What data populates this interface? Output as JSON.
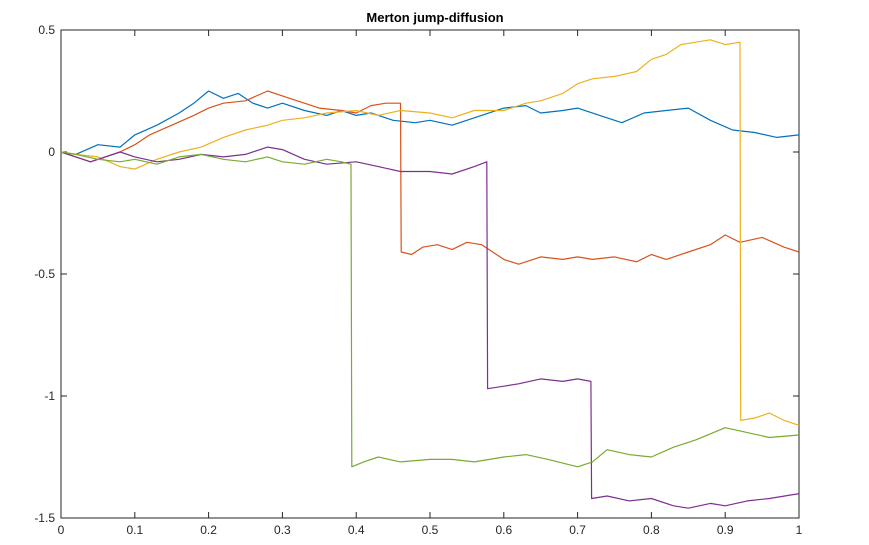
{
  "chart_data": {
    "type": "line",
    "title": "Merton jump-diffusion",
    "xlabel": "",
    "ylabel": "",
    "xlim": [
      0,
      1
    ],
    "ylim": [
      -1.5,
      0.5
    ],
    "xticks": [
      0,
      0.1,
      0.2,
      0.3,
      0.4,
      0.5,
      0.6,
      0.7,
      0.8,
      0.9,
      1
    ],
    "xtick_labels": [
      "0",
      "0.1",
      "0.2",
      "0.3",
      "0.4",
      "0.5",
      "0.6",
      "0.7",
      "0.8",
      "0.9",
      "1"
    ],
    "yticks": [
      -1.5,
      -1,
      -0.5,
      0,
      0.5
    ],
    "ytick_labels": [
      "-1.5",
      "-1",
      "-0.5",
      "0",
      "0.5"
    ],
    "grid": false,
    "legend": "none",
    "series": [
      {
        "color": "#0072BD",
        "x": [
          0,
          0.02,
          0.05,
          0.08,
          0.1,
          0.13,
          0.16,
          0.18,
          0.2,
          0.22,
          0.24,
          0.26,
          0.28,
          0.3,
          0.33,
          0.36,
          0.38,
          0.4,
          0.42,
          0.45,
          0.48,
          0.5,
          0.53,
          0.56,
          0.6,
          0.63,
          0.65,
          0.68,
          0.7,
          0.73,
          0.76,
          0.79,
          0.82,
          0.85,
          0.88,
          0.91,
          0.94,
          0.97,
          1
        ],
        "y": [
          0,
          -0.01,
          0.03,
          0.02,
          0.07,
          0.11,
          0.16,
          0.2,
          0.25,
          0.22,
          0.24,
          0.2,
          0.18,
          0.2,
          0.17,
          0.15,
          0.17,
          0.15,
          0.16,
          0.13,
          0.12,
          0.13,
          0.11,
          0.14,
          0.18,
          0.19,
          0.16,
          0.17,
          0.18,
          0.15,
          0.12,
          0.16,
          0.17,
          0.18,
          0.13,
          0.09,
          0.08,
          0.06,
          0.07
        ]
      },
      {
        "color": "#D95319",
        "x": [
          0,
          0.02,
          0.04,
          0.06,
          0.08,
          0.1,
          0.12,
          0.15,
          0.18,
          0.2,
          0.22,
          0.25,
          0.28,
          0.3,
          0.32,
          0.35,
          0.38,
          0.4,
          0.42,
          0.44,
          0.46,
          0.461,
          0.475,
          0.49,
          0.51,
          0.53,
          0.55,
          0.57,
          0.6,
          0.62,
          0.65,
          0.68,
          0.7,
          0.72,
          0.75,
          0.78,
          0.8,
          0.82,
          0.85,
          0.88,
          0.9,
          0.92,
          0.95,
          0.98,
          1
        ],
        "y": [
          0,
          -0.02,
          -0.04,
          -0.02,
          0,
          0.03,
          0.07,
          0.11,
          0.15,
          0.18,
          0.2,
          0.21,
          0.25,
          0.23,
          0.21,
          0.18,
          0.17,
          0.16,
          0.19,
          0.2,
          0.2,
          -0.41,
          -0.42,
          -0.39,
          -0.38,
          -0.4,
          -0.37,
          -0.38,
          -0.44,
          -0.46,
          -0.43,
          -0.44,
          -0.43,
          -0.44,
          -0.43,
          -0.45,
          -0.42,
          -0.44,
          -0.41,
          -0.38,
          -0.34,
          -0.37,
          -0.35,
          -0.39,
          -0.41
        ]
      },
      {
        "color": "#EDB120",
        "x": [
          0,
          0.02,
          0.05,
          0.08,
          0.1,
          0.13,
          0.16,
          0.19,
          0.22,
          0.25,
          0.28,
          0.3,
          0.33,
          0.36,
          0.4,
          0.43,
          0.46,
          0.5,
          0.53,
          0.56,
          0.6,
          0.63,
          0.65,
          0.68,
          0.7,
          0.72,
          0.75,
          0.78,
          0.8,
          0.82,
          0.84,
          0.86,
          0.88,
          0.9,
          0.92,
          0.921,
          0.94,
          0.96,
          0.98,
          1
        ],
        "y": [
          0,
          -0.01,
          -0.02,
          -0.06,
          -0.07,
          -0.03,
          0,
          0.02,
          0.06,
          0.09,
          0.11,
          0.13,
          0.14,
          0.16,
          0.17,
          0.15,
          0.17,
          0.16,
          0.14,
          0.17,
          0.17,
          0.2,
          0.21,
          0.24,
          0.28,
          0.3,
          0.31,
          0.33,
          0.38,
          0.4,
          0.44,
          0.45,
          0.46,
          0.44,
          0.45,
          -1.1,
          -1.09,
          -1.07,
          -1.1,
          -1.12
        ]
      },
      {
        "color": "#7E2F8E",
        "x": [
          0,
          0.02,
          0.04,
          0.06,
          0.08,
          0.1,
          0.13,
          0.16,
          0.19,
          0.22,
          0.25,
          0.28,
          0.3,
          0.33,
          0.36,
          0.4,
          0.43,
          0.46,
          0.5,
          0.53,
          0.56,
          0.577,
          0.578,
          0.6,
          0.62,
          0.65,
          0.68,
          0.7,
          0.718,
          0.719,
          0.74,
          0.77,
          0.8,
          0.83,
          0.85,
          0.88,
          0.9,
          0.93,
          0.96,
          1
        ],
        "y": [
          0,
          -0.02,
          -0.04,
          -0.02,
          0,
          -0.02,
          -0.04,
          -0.03,
          -0.01,
          -0.02,
          -0.01,
          0.02,
          0.01,
          -0.03,
          -0.05,
          -0.04,
          -0.06,
          -0.08,
          -0.08,
          -0.09,
          -0.06,
          -0.04,
          -0.97,
          -0.96,
          -0.95,
          -0.93,
          -0.94,
          -0.93,
          -0.94,
          -1.42,
          -1.41,
          -1.43,
          -1.42,
          -1.45,
          -1.46,
          -1.44,
          -1.45,
          -1.43,
          -1.42,
          -1.4
        ]
      },
      {
        "color": "#77AC30",
        "x": [
          0,
          0.02,
          0.05,
          0.08,
          0.1,
          0.13,
          0.16,
          0.19,
          0.22,
          0.25,
          0.28,
          0.3,
          0.33,
          0.36,
          0.38,
          0.393,
          0.394,
          0.41,
          0.43,
          0.46,
          0.5,
          0.53,
          0.56,
          0.6,
          0.63,
          0.66,
          0.7,
          0.72,
          0.74,
          0.77,
          0.8,
          0.83,
          0.86,
          0.9,
          0.93,
          0.96,
          1
        ],
        "y": [
          0,
          -0.01,
          -0.03,
          -0.04,
          -0.03,
          -0.05,
          -0.02,
          -0.01,
          -0.03,
          -0.04,
          -0.02,
          -0.04,
          -0.05,
          -0.03,
          -0.04,
          -0.05,
          -1.29,
          -1.27,
          -1.25,
          -1.27,
          -1.26,
          -1.26,
          -1.27,
          -1.25,
          -1.24,
          -1.26,
          -1.29,
          -1.27,
          -1.22,
          -1.24,
          -1.25,
          -1.21,
          -1.18,
          -1.13,
          -1.15,
          -1.17,
          -1.16
        ]
      }
    ]
  }
}
